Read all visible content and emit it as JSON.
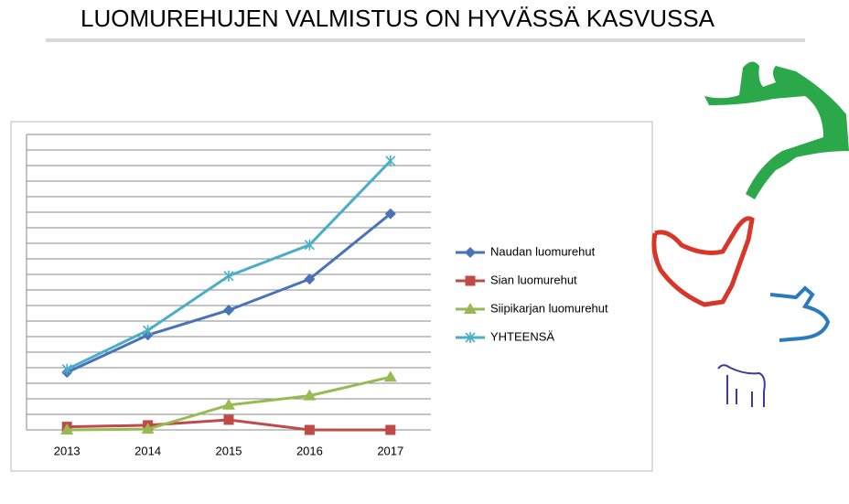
{
  "chart_data": {
    "type": "line",
    "title": "LUOMUREHUJEN VALMISTUS ON HYVÄSSÄ KASVUSSA",
    "categories": [
      "2013",
      "2014",
      "2015",
      "2016",
      "2017"
    ],
    "ylim": [
      0,
      19
    ],
    "grid": true,
    "series": [
      {
        "name": "Naudan luomurehut",
        "color": "#4a72b8",
        "marker": "diamond",
        "values": [
          3.7,
          6.1,
          7.7,
          9.7,
          13.9
        ]
      },
      {
        "name": "Sian luomurehut",
        "color": "#bf4b48",
        "marker": "square",
        "values": [
          0.2,
          0.3,
          0.65,
          0,
          0
        ]
      },
      {
        "name": "Siipikarjan luomurehut",
        "color": "#97ba52",
        "marker": "triangle",
        "values": [
          0,
          0.05,
          1.6,
          2.2,
          3.4
        ]
      },
      {
        "name": "YHTEENSÄ",
        "color": "#4aaec8",
        "marker": "star",
        "values": [
          3.9,
          6.4,
          9.9,
          11.9,
          17.3
        ]
      }
    ]
  }
}
